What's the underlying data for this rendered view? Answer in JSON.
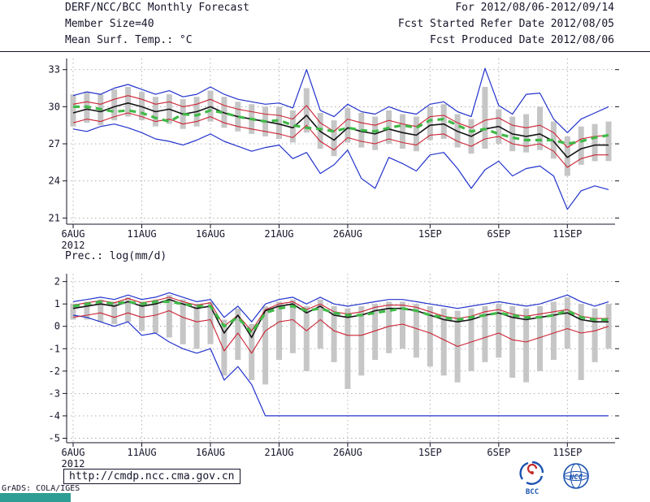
{
  "header": {
    "title": "DERF/NCC/BCC Monthly Forecast",
    "date_range": "For 2012/08/06-2012/09/14",
    "member_size": "Member Size=40",
    "fcst_started": "Fcst Started Refer Date 2012/08/05",
    "temp_label": "Mean Surf. Temp.: °C",
    "fcst_produced": "Fcst Produced Date 2012/08/06"
  },
  "footer": {
    "url": "http://cmdp.ncc.cma.gov.cn",
    "grads_credit": "GrADS: COLA/IGES",
    "logo_bcc": "BCC",
    "logo_ncc": "NCC"
  },
  "colors": {
    "line_blue": "#2233cc",
    "line_red": "#cc2233",
    "line_black": "#151515",
    "line_green": "#3fba47",
    "bar_gray": "#c6c6c6",
    "logo_blue": "#1a52b0",
    "grads_teal": "#2e9e94"
  },
  "chart_data": [
    {
      "type": "line",
      "title": "Mean Surf. Temp.: °C",
      "n_days": 40,
      "x_tick_labels": [
        "6AUG",
        "11AUG",
        "16AUG",
        "21AUG",
        "26AUG",
        "1SEP",
        "6SEP",
        "11SEP"
      ],
      "x_tick_days": [
        0,
        5,
        10,
        15,
        20,
        26,
        31,
        36
      ],
      "x_year_label": "2012",
      "yticks": [
        21,
        24,
        27,
        30,
        33
      ],
      "ylim": [
        21,
        33
      ],
      "grid": "dotted",
      "bars": {
        "name": "ensemble-spread",
        "color": "#c6c6c6",
        "high": [
          31.0,
          31.2,
          31.0,
          31.4,
          31.6,
          31.2,
          30.8,
          31.0,
          30.6,
          30.8,
          31.3,
          30.8,
          30.4,
          30.2,
          30.0,
          30.0,
          29.7,
          31.5,
          29.5,
          28.9,
          29.9,
          29.5,
          29.2,
          29.7,
          29.4,
          29.2,
          30.0,
          30.2,
          29.4,
          29.0,
          31.6,
          29.8,
          29.2,
          29.4,
          30.0,
          28.8,
          27.6,
          28.4,
          28.6,
          28.8
        ],
        "low": [
          28.4,
          28.7,
          28.5,
          28.9,
          29.2,
          28.9,
          28.4,
          28.6,
          28.2,
          28.4,
          28.8,
          28.3,
          28.0,
          27.8,
          27.6,
          27.4,
          27.1,
          27.9,
          26.6,
          26.0,
          27.1,
          26.7,
          26.5,
          27.0,
          26.6,
          26.4,
          27.3,
          27.4,
          26.7,
          26.2,
          26.6,
          27.0,
          26.4,
          26.3,
          26.5,
          25.8,
          24.4,
          25.3,
          25.6,
          25.6
        ]
      },
      "series": [
        {
          "name": "ensemble-max",
          "color": "#2233cc",
          "width": 1.2,
          "values": [
            30.9,
            31.2,
            31.0,
            31.5,
            31.8,
            31.4,
            31.0,
            31.3,
            30.8,
            31.0,
            31.6,
            31.0,
            30.6,
            30.4,
            30.2,
            30.3,
            29.9,
            33.0,
            29.7,
            29.2,
            30.2,
            29.6,
            29.4,
            30.0,
            29.6,
            29.4,
            30.2,
            30.4,
            29.6,
            29.2,
            33.1,
            30.1,
            29.4,
            31.0,
            31.1,
            29.0,
            27.9,
            29.0,
            29.5,
            30.0
          ]
        },
        {
          "name": "ensemble-min",
          "color": "#2233cc",
          "width": 1.2,
          "values": [
            28.2,
            28.0,
            28.4,
            28.6,
            28.3,
            27.9,
            27.4,
            27.2,
            26.9,
            27.3,
            27.8,
            27.2,
            26.8,
            26.4,
            26.7,
            26.9,
            25.8,
            26.3,
            24.6,
            25.3,
            26.5,
            24.2,
            23.4,
            25.9,
            25.4,
            24.8,
            26.1,
            26.3,
            25.0,
            23.4,
            24.9,
            25.6,
            24.4,
            25.0,
            25.2,
            24.4,
            21.7,
            23.2,
            23.6,
            23.3
          ]
        },
        {
          "name": "quartile-upper",
          "color": "#cc2233",
          "width": 1.1,
          "values": [
            30.2,
            30.4,
            30.2,
            30.6,
            30.9,
            30.6,
            30.2,
            30.4,
            30.0,
            30.2,
            30.6,
            30.1,
            29.8,
            29.6,
            29.4,
            29.3,
            29.0,
            30.1,
            28.7,
            28.0,
            29.0,
            28.7,
            28.5,
            28.9,
            28.6,
            28.4,
            29.2,
            29.3,
            28.7,
            28.3,
            28.9,
            29.1,
            28.5,
            28.3,
            28.5,
            27.9,
            26.7,
            27.4,
            27.6,
            27.7
          ]
        },
        {
          "name": "quartile-lower",
          "color": "#cc2233",
          "width": 1.1,
          "values": [
            28.7,
            29.0,
            28.8,
            29.2,
            29.5,
            29.2,
            28.8,
            29.0,
            28.6,
            28.8,
            29.2,
            28.7,
            28.4,
            28.2,
            28.0,
            27.8,
            27.5,
            28.5,
            27.2,
            26.5,
            27.5,
            27.2,
            27.0,
            27.4,
            27.1,
            26.9,
            27.7,
            27.8,
            27.2,
            26.8,
            27.4,
            27.6,
            27.0,
            26.8,
            27.0,
            26.4,
            25.1,
            25.8,
            26.1,
            26.1
          ]
        },
        {
          "name": "ensemble-mean",
          "color": "#151515",
          "width": 1.6,
          "values": [
            29.5,
            29.8,
            29.6,
            30.0,
            30.3,
            30.0,
            29.6,
            29.8,
            29.4,
            29.6,
            30.0,
            29.5,
            29.2,
            29.0,
            28.8,
            28.6,
            28.3,
            29.3,
            28.0,
            27.3,
            28.3,
            28.0,
            27.8,
            28.2,
            27.9,
            27.7,
            28.5,
            28.6,
            28.0,
            27.6,
            28.2,
            28.4,
            27.8,
            27.6,
            27.8,
            27.2,
            25.9,
            26.6,
            26.9,
            26.9
          ]
        },
        {
          "name": "climatology",
          "color": "#3fba47",
          "width": 3.2,
          "dash": "8 6",
          "values": [
            30.0,
            30.0,
            29.8,
            29.6,
            29.7,
            29.5,
            29.1,
            28.8,
            29.4,
            29.3,
            29.7,
            29.5,
            29.2,
            29.0,
            28.8,
            28.9,
            28.5,
            28.3,
            28.2,
            28.0,
            28.3,
            28.1,
            28.0,
            28.3,
            28.5,
            28.3,
            28.9,
            29.0,
            28.5,
            28.0,
            28.2,
            27.8,
            27.5,
            27.3,
            27.3,
            27.3,
            27.0,
            27.2,
            27.5,
            27.7
          ]
        }
      ]
    },
    {
      "type": "line",
      "title": "Prec.: log(mm/d)",
      "n_days": 40,
      "x_tick_labels": [
        "6AUG",
        "11AUG",
        "16AUG",
        "21AUG",
        "26AUG",
        "1SEP",
        "6SEP",
        "11SEP"
      ],
      "x_tick_days": [
        0,
        5,
        10,
        15,
        20,
        26,
        31,
        36
      ],
      "x_year_label": "2012",
      "yticks": [
        -5,
        -4,
        -3,
        -2,
        -1,
        0,
        1,
        2
      ],
      "ylim": [
        -5,
        2
      ],
      "grid": "dotted",
      "bars": {
        "name": "ensemble-spread",
        "color": "#c6c6c6",
        "high": [
          1.0,
          1.1,
          1.2,
          1.1,
          1.3,
          1.1,
          1.2,
          1.4,
          1.2,
          1.0,
          1.1,
          0.3,
          0.8,
          0.1,
          0.9,
          1.1,
          1.2,
          0.9,
          1.2,
          0.9,
          0.8,
          0.9,
          1.0,
          1.1,
          1.1,
          1.0,
          0.9,
          0.8,
          0.7,
          0.8,
          0.9,
          1.0,
          0.9,
          0.8,
          0.9,
          1.1,
          1.3,
          1.0,
          0.8,
          1.0
        ],
        "low": [
          0.3,
          0.3,
          0.2,
          0.1,
          0.2,
          -0.2,
          -0.3,
          -0.5,
          -0.8,
          -1.0,
          -0.8,
          -2.2,
          -1.5,
          -2.4,
          -2.6,
          -1.5,
          -1.2,
          -2.0,
          -1.0,
          -1.6,
          -2.8,
          -2.2,
          -1.5,
          -1.2,
          -1.0,
          -1.4,
          -1.8,
          -2.2,
          -2.5,
          -2.0,
          -1.6,
          -1.4,
          -2.3,
          -2.5,
          -2.0,
          -1.5,
          -1.0,
          -2.4,
          -1.6,
          -1.0
        ]
      },
      "series": [
        {
          "name": "ensemble-max",
          "color": "#2233cc",
          "width": 1.2,
          "values": [
            1.1,
            1.2,
            1.3,
            1.2,
            1.4,
            1.2,
            1.3,
            1.5,
            1.3,
            1.1,
            1.2,
            0.4,
            0.9,
            0.2,
            1.0,
            1.2,
            1.3,
            1.0,
            1.3,
            1.0,
            0.9,
            1.0,
            1.1,
            1.2,
            1.2,
            1.1,
            1.0,
            0.9,
            0.8,
            0.9,
            1.0,
            1.1,
            1.0,
            0.9,
            1.0,
            1.2,
            1.4,
            1.1,
            0.9,
            1.1
          ]
        },
        {
          "name": "ensemble-min",
          "color": "#2233cc",
          "width": 1.2,
          "values": [
            0.5,
            0.4,
            0.2,
            0.0,
            0.2,
            -0.4,
            -0.3,
            -0.7,
            -1.0,
            -1.2,
            -1.0,
            -2.4,
            -1.8,
            -2.6,
            -4.0,
            -4.0,
            -4.0,
            -4.0,
            -4.0,
            -4.0,
            -4.0,
            -4.0,
            -4.0,
            -4.0,
            -4.0,
            -4.0,
            -4.0,
            -4.0,
            -4.0,
            -4.0,
            -4.0,
            -4.0,
            -4.0,
            -4.0,
            -4.0,
            -4.0,
            -4.0,
            -4.0,
            -4.0,
            -4.0
          ]
        },
        {
          "name": "quartile-upper",
          "color": "#cc2233",
          "width": 1.1,
          "values": [
            0.95,
            1.05,
            1.15,
            1.05,
            1.25,
            1.05,
            1.15,
            1.3,
            1.1,
            0.95,
            1.05,
            0.0,
            0.5,
            -0.2,
            0.75,
            1.0,
            1.1,
            0.75,
            1.0,
            0.65,
            0.55,
            0.65,
            0.85,
            0.95,
            0.95,
            0.85,
            0.65,
            0.45,
            0.35,
            0.45,
            0.65,
            0.75,
            0.55,
            0.45,
            0.55,
            0.65,
            0.75,
            0.45,
            0.35,
            0.35
          ]
        },
        {
          "name": "quartile-lower",
          "color": "#cc2233",
          "width": 1.1,
          "values": [
            0.4,
            0.5,
            0.6,
            0.4,
            0.6,
            0.4,
            0.5,
            0.7,
            0.4,
            0.2,
            0.3,
            -1.1,
            -0.3,
            -1.2,
            -0.2,
            0.2,
            0.3,
            -0.2,
            0.3,
            -0.2,
            -0.4,
            -0.4,
            -0.2,
            0.0,
            0.1,
            -0.1,
            -0.3,
            -0.6,
            -0.9,
            -0.7,
            -0.5,
            -0.3,
            -0.6,
            -0.7,
            -0.5,
            -0.3,
            -0.1,
            -0.3,
            -0.2,
            0.0
          ]
        },
        {
          "name": "ensemble-mean",
          "color": "#151515",
          "width": 1.6,
          "values": [
            0.8,
            0.9,
            1.0,
            0.9,
            1.1,
            0.9,
            1.0,
            1.2,
            1.0,
            0.8,
            0.9,
            -0.3,
            0.5,
            -0.5,
            0.7,
            0.9,
            1.0,
            0.6,
            0.9,
            0.5,
            0.4,
            0.5,
            0.7,
            0.8,
            0.8,
            0.7,
            0.5,
            0.3,
            0.2,
            0.3,
            0.5,
            0.6,
            0.4,
            0.3,
            0.4,
            0.5,
            0.6,
            0.3,
            0.2,
            0.2
          ]
        },
        {
          "name": "climatology",
          "color": "#3fba47",
          "width": 3.2,
          "dash": "8 6",
          "values": [
            0.9,
            1.0,
            1.1,
            1.0,
            1.1,
            1.0,
            1.1,
            1.1,
            1.0,
            0.9,
            0.9,
            0.0,
            0.4,
            -0.3,
            0.6,
            0.8,
            0.9,
            0.7,
            0.8,
            0.6,
            0.5,
            0.5,
            0.6,
            0.7,
            0.8,
            0.7,
            0.5,
            0.4,
            0.3,
            0.4,
            0.5,
            0.6,
            0.5,
            0.4,
            0.4,
            0.5,
            0.7,
            0.4,
            0.3,
            0.3
          ]
        }
      ]
    }
  ]
}
